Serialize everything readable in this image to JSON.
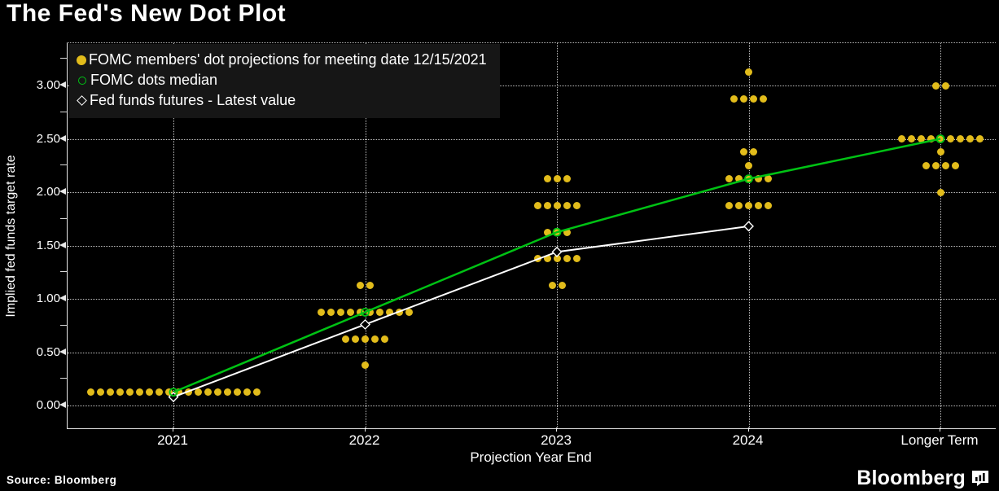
{
  "title": "The Fed's New Dot Plot",
  "source": "Source: Bloomberg",
  "brand": {
    "logo_text": "Bloomberg"
  },
  "colors": {
    "background": "#000000",
    "dot_yellow": "#e2bc1b",
    "median_green": "#00c214",
    "futures_white": "#ffffff",
    "grid": "#ffffff",
    "legend_bg": "#161616",
    "text": "#ffffff"
  },
  "legend": {
    "items": [
      {
        "marker": "filled-circle",
        "color": "#e2bc1b",
        "label": "FOMC members' dot projections for meeting date 12/15/2021"
      },
      {
        "marker": "open-circle",
        "color": "#00c214",
        "label": "FOMC dots median"
      },
      {
        "marker": "open-diamond",
        "color": "#ffffff",
        "label": "Fed funds futures - Latest value"
      }
    ]
  },
  "chart_data": {
    "type": "scatter",
    "title": "The Fed's New Dot Plot",
    "xlabel": "Projection Year End",
    "ylabel": "Implied fed funds target rate",
    "categories": [
      "2021",
      "2022",
      "2023",
      "2024",
      "Longer Term"
    ],
    "y_ticks": [
      "0.00",
      "0.50",
      "1.00",
      "1.50",
      "2.00",
      "2.50",
      "3.00"
    ],
    "y_minor_ticks": [
      0.25,
      0.75,
      1.25,
      1.75,
      2.25,
      2.75,
      3.25
    ],
    "ylim": [
      -0.21,
      3.4
    ],
    "grid": true,
    "legend_position": "top-left",
    "series": [
      {
        "name": "FOMC members' dot projections for meeting date 12/15/2021",
        "type": "dot-groups",
        "groups": [
          {
            "category": "2021",
            "dots": [
              {
                "value": 0.125,
                "count": 18
              }
            ]
          },
          {
            "category": "2022",
            "dots": [
              {
                "value": 0.375,
                "count": 1
              },
              {
                "value": 0.625,
                "count": 5
              },
              {
                "value": 0.875,
                "count": 10
              },
              {
                "value": 1.125,
                "count": 2
              }
            ]
          },
          {
            "category": "2023",
            "dots": [
              {
                "value": 1.125,
                "count": 2
              },
              {
                "value": 1.375,
                "count": 5
              },
              {
                "value": 1.625,
                "count": 3
              },
              {
                "value": 1.875,
                "count": 5
              },
              {
                "value": 2.125,
                "count": 3
              }
            ]
          },
          {
            "category": "2024",
            "dots": [
              {
                "value": 1.875,
                "count": 5
              },
              {
                "value": 2.125,
                "count": 5
              },
              {
                "value": 2.25,
                "count": 1
              },
              {
                "value": 2.375,
                "count": 2
              },
              {
                "value": 2.875,
                "count": 4
              },
              {
                "value": 3.125,
                "count": 1
              }
            ]
          },
          {
            "category": "Longer Term",
            "dots": [
              {
                "value": 2.0,
                "count": 1
              },
              {
                "value": 2.25,
                "count": 4
              },
              {
                "value": 2.375,
                "count": 1
              },
              {
                "value": 2.5,
                "count": 9
              },
              {
                "value": 3.0,
                "count": 2
              }
            ]
          }
        ]
      },
      {
        "name": "FOMC dots median",
        "type": "line-open-circle",
        "values": [
          0.125,
          0.875,
          1.625,
          2.125,
          2.5
        ]
      },
      {
        "name": "Fed funds futures - Latest value",
        "type": "line-open-diamond",
        "values": [
          0.08,
          0.76,
          1.44,
          1.68,
          null
        ]
      }
    ]
  }
}
